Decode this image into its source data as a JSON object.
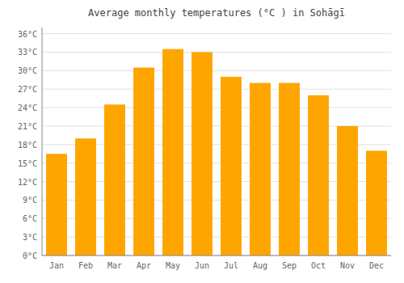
{
  "chart_data": {
    "type": "bar",
    "title": "Average monthly temperatures (°C ) in Sohāgī",
    "categories": [
      "Jan",
      "Feb",
      "Mar",
      "Apr",
      "May",
      "Jun",
      "Jul",
      "Aug",
      "Sep",
      "Oct",
      "Nov",
      "Dec"
    ],
    "values": [
      16.5,
      19.0,
      24.5,
      30.5,
      33.5,
      33.0,
      29.0,
      28.0,
      28.0,
      26.0,
      21.0,
      17.0
    ],
    "color": "#FFA500",
    "ylim": [
      0,
      37
    ],
    "yticks": [
      {
        "value": 0,
        "label": "0°C"
      },
      {
        "value": 3,
        "label": "3°C"
      },
      {
        "value": 6,
        "label": "6°C"
      },
      {
        "value": 9,
        "label": "9°C"
      },
      {
        "value": 12,
        "label": "12°C"
      },
      {
        "value": 15,
        "label": "15°C"
      },
      {
        "value": 18,
        "label": "18°C"
      },
      {
        "value": 21,
        "label": "21°C"
      },
      {
        "value": 24,
        "label": "24°C"
      },
      {
        "value": 27,
        "label": "27°C"
      },
      {
        "value": 30,
        "label": "30°C"
      },
      {
        "value": 33,
        "label": "33°C"
      },
      {
        "value": 36,
        "label": "36°C"
      }
    ],
    "grid": true
  }
}
